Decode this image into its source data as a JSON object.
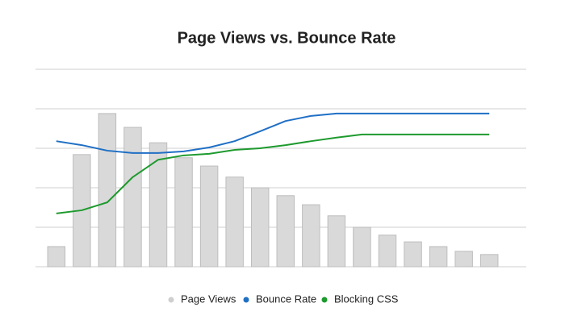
{
  "chart_data": {
    "type": "bar",
    "title": "Page Views vs. Bounce Rate",
    "categories": [
      null,
      null,
      null,
      null,
      null,
      null,
      null,
      null,
      null,
      null,
      null,
      null,
      null,
      null,
      null,
      null,
      null,
      null
    ],
    "series": [
      {
        "name": "Page Views",
        "type": "bar",
        "color": "#d9d9d9",
        "values": [
          0.51,
          2.84,
          3.88,
          3.53,
          3.14,
          2.76,
          2.55,
          2.27,
          2.0,
          1.8,
          1.57,
          1.29,
          1.0,
          0.8,
          0.63,
          0.51,
          0.39,
          0.31
        ]
      },
      {
        "name": "Bounce Rate",
        "type": "line",
        "color": "#1f6fc5",
        "values": [
          3.18,
          3.08,
          2.94,
          2.88,
          2.88,
          2.92,
          3.02,
          3.18,
          3.43,
          3.69,
          3.82,
          3.88,
          3.88,
          3.88,
          3.88,
          3.88,
          3.88,
          3.88
        ]
      },
      {
        "name": "Blocking CSS",
        "type": "line",
        "color": "#1e9a2e",
        "values": [
          1.35,
          1.43,
          1.63,
          2.27,
          2.71,
          2.82,
          2.86,
          2.96,
          3.0,
          3.08,
          3.18,
          3.27,
          3.35,
          3.35,
          3.35,
          3.35,
          3.35,
          3.35
        ]
      }
    ],
    "ylim": [
      0,
      5
    ],
    "yticks": [
      0,
      1,
      2,
      3,
      4,
      5
    ],
    "grid": true,
    "tick_labels": false,
    "legend": "bottom"
  }
}
